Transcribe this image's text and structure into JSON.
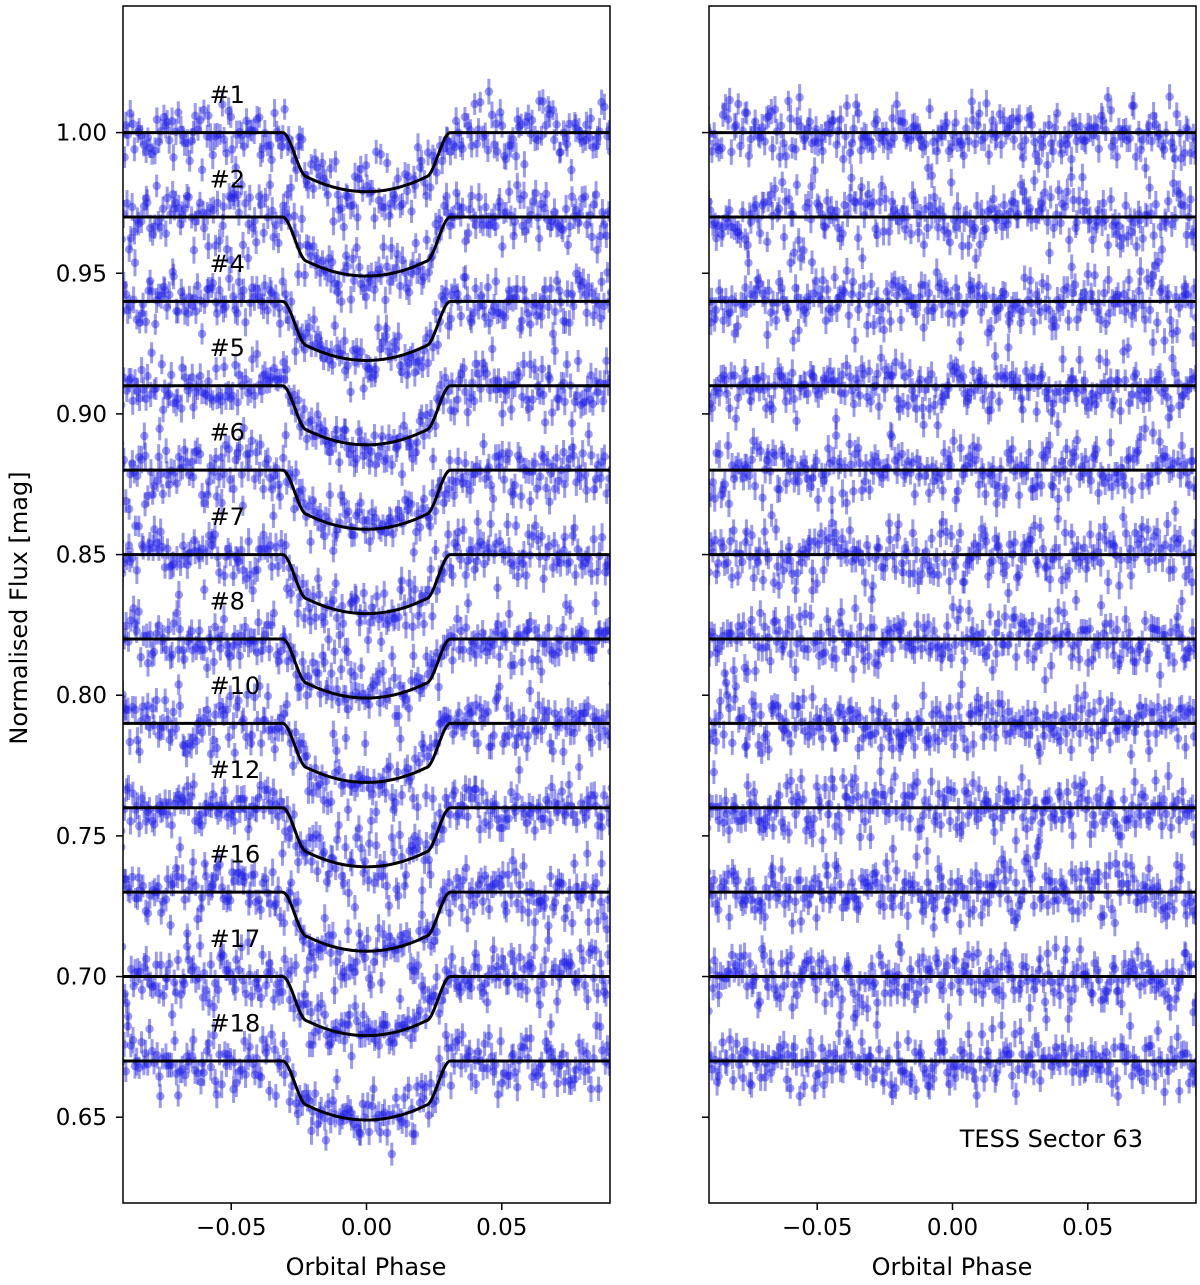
{
  "chart_data": {
    "type": "scatter",
    "ylabel": "Normalised Flux [mag]",
    "panels": [
      {
        "id": "left",
        "xlabel": "Orbital Phase",
        "xlim": [
          -0.09,
          0.09
        ],
        "ylim": [
          0.6195,
          1.045
        ],
        "x_ticks": [
          -0.05,
          0.0,
          0.05
        ],
        "x_tick_labels": [
          "−0.05",
          "0.00",
          "0.05"
        ],
        "y_ticks": [
          0.65,
          0.7,
          0.75,
          0.8,
          0.85,
          0.9,
          0.95,
          1.0
        ],
        "y_tick_labels": [
          "0.65",
          "0.70",
          "0.75",
          "0.80",
          "0.85",
          "0.90",
          "0.95",
          "1.00"
        ],
        "show_y_tick_labels": true,
        "transit_depth": 0.021,
        "series": [
          {
            "name": "#1",
            "baseline": 1.0
          },
          {
            "name": "#2",
            "baseline": 0.97
          },
          {
            "name": "#4",
            "baseline": 0.94
          },
          {
            "name": "#5",
            "baseline": 0.91
          },
          {
            "name": "#6",
            "baseline": 0.88
          },
          {
            "name": "#7",
            "baseline": 0.85
          },
          {
            "name": "#8",
            "baseline": 0.82
          },
          {
            "name": "#10",
            "baseline": 0.79
          },
          {
            "name": "#12",
            "baseline": 0.76
          },
          {
            "name": "#16",
            "baseline": 0.73
          },
          {
            "name": "#17",
            "baseline": 0.7
          },
          {
            "name": "#18",
            "baseline": 0.67
          }
        ]
      },
      {
        "id": "right",
        "xlabel": "Orbital Phase",
        "xlim": [
          -0.09,
          0.09
        ],
        "ylim": [
          0.6195,
          1.045
        ],
        "x_ticks": [
          -0.05,
          0.0,
          0.05
        ],
        "x_tick_labels": [
          "−0.05",
          "0.00",
          "0.05"
        ],
        "y_ticks": [
          0.65,
          0.7,
          0.75,
          0.8,
          0.85,
          0.9,
          0.95,
          1.0
        ],
        "show_y_tick_labels": false,
        "transit_depth": 0,
        "annotation": "TESS Sector 63",
        "residual_baselines": [
          1.0,
          0.97,
          0.94,
          0.91,
          0.88,
          0.85,
          0.82,
          0.79,
          0.76,
          0.73,
          0.7,
          0.67
        ]
      }
    ],
    "transit_model": {
      "ingress_phase": -0.031,
      "flat_bottom_phase": -0.022
    },
    "colors": {
      "points": "#1f1fe6",
      "model": "#000000",
      "axes": "#000000"
    }
  }
}
